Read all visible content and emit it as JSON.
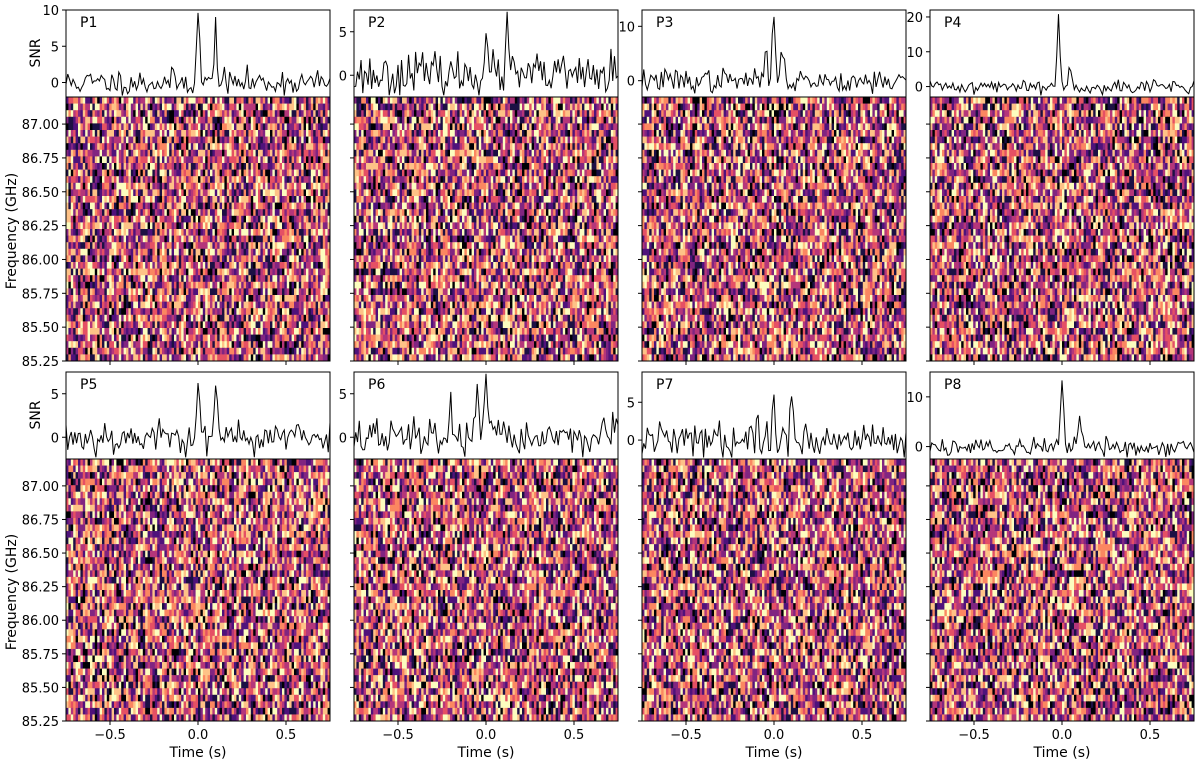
{
  "figure": {
    "freq_axis_label": "Frequency (GHz)",
    "snr_axis_label": "SNR",
    "time_axis_label": "Time (s)"
  },
  "chart_data": [
    {
      "type": "line",
      "panel": "P1",
      "snr_ticks": [
        0,
        5,
        10
      ],
      "snr_range": [
        -2,
        10
      ],
      "peak": {
        "time": 0.0,
        "snr": 9.6
      },
      "secondary_peaks": [
        {
          "time": 0.1,
          "snr": 7.6
        }
      ],
      "x_range": [
        -0.75,
        0.75
      ],
      "x_ticks": [
        -0.5,
        0.0,
        0.5
      ],
      "freq_ticks": [
        87.0,
        86.75,
        86.5,
        86.25,
        86.0,
        85.75,
        85.5,
        85.25
      ],
      "freq_range": [
        85.25,
        87.2
      ],
      "show_x_tick_labels": false,
      "show_y_tick_labels": true,
      "noise": 0.9,
      "seed": 11,
      "heatmap_signal": 0.05
    },
    {
      "type": "line",
      "panel": "P2",
      "snr_ticks": [
        0,
        5
      ],
      "snr_range": [
        -2.5,
        7.5
      ],
      "peak": {
        "time": 0.0,
        "snr": 5.8
      },
      "secondary_peaks": [
        {
          "time": 0.12,
          "snr": 5.8
        },
        {
          "time": -0.4,
          "snr": 3.0
        }
      ],
      "x_range": [
        -0.75,
        0.75
      ],
      "x_ticks": [
        -0.5,
        0.0,
        0.5
      ],
      "freq_ticks": [
        87.0,
        86.75,
        86.5,
        86.25,
        86.0,
        85.75,
        85.5,
        85.25
      ],
      "freq_range": [
        85.25,
        87.2
      ],
      "show_x_tick_labels": false,
      "show_y_tick_labels": false,
      "noise": 1.2,
      "seed": 23,
      "heatmap_signal": 0.1
    },
    {
      "type": "line",
      "panel": "P3",
      "snr_ticks": [
        0,
        10
      ],
      "snr_range": [
        -3,
        13
      ],
      "peak": {
        "time": 0.0,
        "snr": 12.2
      },
      "secondary_peaks": [
        {
          "time": 0.05,
          "snr": 7.0
        },
        {
          "time": -0.05,
          "snr": 5.5
        }
      ],
      "x_range": [
        -0.75,
        0.75
      ],
      "x_ticks": [
        -0.5,
        0.0,
        0.5
      ],
      "freq_ticks": [
        87.0,
        86.75,
        86.5,
        86.25,
        86.0,
        85.75,
        85.5,
        85.25
      ],
      "freq_range": [
        85.25,
        87.2
      ],
      "show_x_tick_labels": false,
      "show_y_tick_labels": false,
      "noise": 1.1,
      "seed": 37,
      "heatmap_signal": 0.3
    },
    {
      "type": "line",
      "panel": "P4",
      "snr_ticks": [
        0,
        10,
        20
      ],
      "snr_range": [
        -3,
        22
      ],
      "peak": {
        "time": -0.02,
        "snr": 20.5
      },
      "secondary_peaks": [
        {
          "time": 0.05,
          "snr": 6.0
        }
      ],
      "x_range": [
        -0.75,
        0.75
      ],
      "x_ticks": [
        -0.5,
        0.0,
        0.5
      ],
      "freq_ticks": [
        87.0,
        86.75,
        86.5,
        86.25,
        86.0,
        85.75,
        85.5,
        85.25
      ],
      "freq_range": [
        85.25,
        87.2
      ],
      "show_x_tick_labels": false,
      "show_y_tick_labels": false,
      "noise": 1.0,
      "seed": 41,
      "heatmap_signal": 0.6
    },
    {
      "type": "line",
      "panel": "P5",
      "snr_ticks": [
        0,
        5
      ],
      "snr_range": [
        -2.5,
        7.5
      ],
      "peak": {
        "time": 0.0,
        "snr": 7.0
      },
      "secondary_peaks": [
        {
          "time": 0.1,
          "snr": 4.5
        }
      ],
      "x_range": [
        -0.75,
        0.75
      ],
      "x_ticks": [
        -0.5,
        0.0,
        0.5
      ],
      "freq_ticks": [
        87.0,
        86.75,
        86.5,
        86.25,
        86.0,
        85.75,
        85.5,
        85.25
      ],
      "freq_range": [
        85.25,
        87.2
      ],
      "show_x_tick_labels": true,
      "show_y_tick_labels": true,
      "noise": 1.0,
      "seed": 53,
      "heatmap_signal": 0.1
    },
    {
      "type": "line",
      "panel": "P6",
      "snr_ticks": [
        0,
        5
      ],
      "snr_range": [
        -2.5,
        7.5
      ],
      "peak": {
        "time": 0.0,
        "snr": 7.0
      },
      "secondary_peaks": [
        {
          "time": -0.05,
          "snr": 4.5
        },
        {
          "time": -0.2,
          "snr": 3.5
        }
      ],
      "x_range": [
        -0.75,
        0.75
      ],
      "x_ticks": [
        -0.5,
        0.0,
        0.5
      ],
      "freq_ticks": [
        87.0,
        86.75,
        86.5,
        86.25,
        86.0,
        85.75,
        85.5,
        85.25
      ],
      "freq_range": [
        85.25,
        87.2
      ],
      "show_x_tick_labels": true,
      "show_y_tick_labels": false,
      "noise": 1.1,
      "seed": 67,
      "heatmap_signal": 0.1
    },
    {
      "type": "line",
      "panel": "P7",
      "snr_ticks": [
        0,
        5
      ],
      "snr_range": [
        -2.5,
        9
      ],
      "peak": {
        "time": 0.0,
        "snr": 7.8
      },
      "secondary_peaks": [
        {
          "time": 0.1,
          "snr": 6.5
        },
        {
          "time": -0.1,
          "snr": 4.0
        }
      ],
      "x_range": [
        -0.75,
        0.75
      ],
      "x_ticks": [
        -0.5,
        0.0,
        0.5
      ],
      "freq_ticks": [
        87.0,
        86.75,
        86.5,
        86.25,
        86.0,
        85.75,
        85.5,
        85.25
      ],
      "freq_range": [
        85.25,
        87.2
      ],
      "show_x_tick_labels": true,
      "show_y_tick_labels": false,
      "noise": 1.2,
      "seed": 79,
      "heatmap_signal": 0.15
    },
    {
      "type": "line",
      "panel": "P8",
      "snr_ticks": [
        0,
        10
      ],
      "snr_range": [
        -2.5,
        15
      ],
      "peak": {
        "time": 0.0,
        "snr": 14.5
      },
      "secondary_peaks": [
        {
          "time": 0.1,
          "snr": 5.0
        }
      ],
      "x_range": [
        -0.75,
        0.75
      ],
      "x_ticks": [
        -0.5,
        0.0,
        0.5
      ],
      "freq_ticks": [
        87.0,
        86.75,
        86.5,
        86.25,
        86.0,
        85.75,
        85.5,
        85.25
      ],
      "freq_range": [
        85.25,
        87.2
      ],
      "show_x_tick_labels": true,
      "show_y_tick_labels": false,
      "noise": 1.0,
      "seed": 89,
      "heatmap_signal": 0.2
    }
  ],
  "colors": {
    "colormap": [
      "#000004",
      "#1c1044",
      "#4f127b",
      "#812581",
      "#b5367a",
      "#e55064",
      "#fb8761",
      "#fec287",
      "#fcfdbf"
    ],
    "line": "#000000"
  }
}
